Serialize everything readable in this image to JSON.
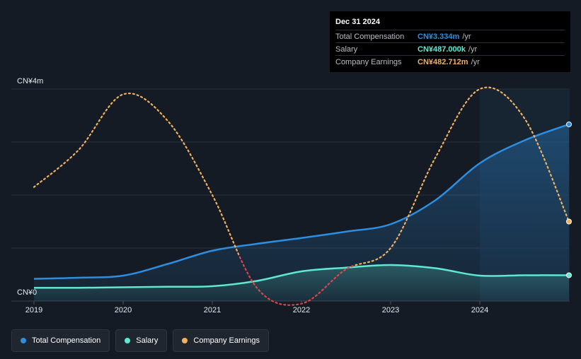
{
  "tooltip": {
    "date": "Dec 31 2024",
    "rows": [
      {
        "label": "Total Compensation",
        "value": "CN¥3.334m",
        "unit": "/yr"
      },
      {
        "label": "Salary",
        "value": "CN¥487.000k",
        "unit": "/yr"
      },
      {
        "label": "Company Earnings",
        "value": "CN¥482.712m",
        "unit": "/yr"
      }
    ]
  },
  "y_axis": {
    "top_label": "CN¥4m",
    "bottom_label": "CN¥0"
  },
  "legend": [
    {
      "label": "Total Compensation",
      "color": "#2d8ee0"
    },
    {
      "label": "Salary",
      "color": "#5ee8d2"
    },
    {
      "label": "Company Earnings",
      "color": "#f0b060"
    }
  ],
  "colors": {
    "background": "#151b24",
    "total_compensation": "#2d8ee0",
    "salary": "#5ee8d2",
    "company_earnings": "#f0b060",
    "company_earnings_negative": "#e0454a"
  },
  "chart_data": {
    "type": "line",
    "title": "",
    "xlabel": "",
    "ylabel": "",
    "ylim": [
      0,
      4.0
    ],
    "x_ticks": [
      "2019",
      "2020",
      "2021",
      "2022",
      "2023",
      "2024"
    ],
    "y_ticks": [
      "CN¥0",
      "CN¥4m"
    ],
    "grid": true,
    "legend_position": "bottom-left",
    "series": [
      {
        "name": "Total Compensation",
        "unit": "CN¥m",
        "x": [
          2019.0,
          2019.5,
          2020.0,
          2020.5,
          2021.0,
          2021.5,
          2022.0,
          2022.5,
          2023.0,
          2023.5,
          2024.0,
          2024.5,
          2025.0
        ],
        "y": [
          0.42,
          0.44,
          0.48,
          0.7,
          0.95,
          1.08,
          1.19,
          1.31,
          1.45,
          1.9,
          2.6,
          3.03,
          3.334
        ]
      },
      {
        "name": "Salary",
        "unit": "CN¥m",
        "x": [
          2019.0,
          2019.5,
          2020.0,
          2020.5,
          2021.0,
          2021.5,
          2022.0,
          2022.5,
          2023.0,
          2023.5,
          2024.0,
          2024.5,
          2025.0
        ],
        "y": [
          0.25,
          0.25,
          0.26,
          0.27,
          0.28,
          0.38,
          0.56,
          0.63,
          0.68,
          0.62,
          0.48,
          0.487,
          0.487
        ]
      },
      {
        "name": "Company Earnings",
        "unit": "relative",
        "x": [
          2019.0,
          2019.5,
          2020.0,
          2020.5,
          2021.0,
          2021.5,
          2022.0,
          2022.5,
          2023.0,
          2023.5,
          2024.0,
          2024.5,
          2025.0
        ],
        "y": [
          2.15,
          2.85,
          3.9,
          3.4,
          2.0,
          0.25,
          -0.05,
          0.6,
          1.0,
          2.7,
          4.0,
          3.45,
          1.5
        ]
      }
    ],
    "highlight_region_from": 2024.0
  }
}
